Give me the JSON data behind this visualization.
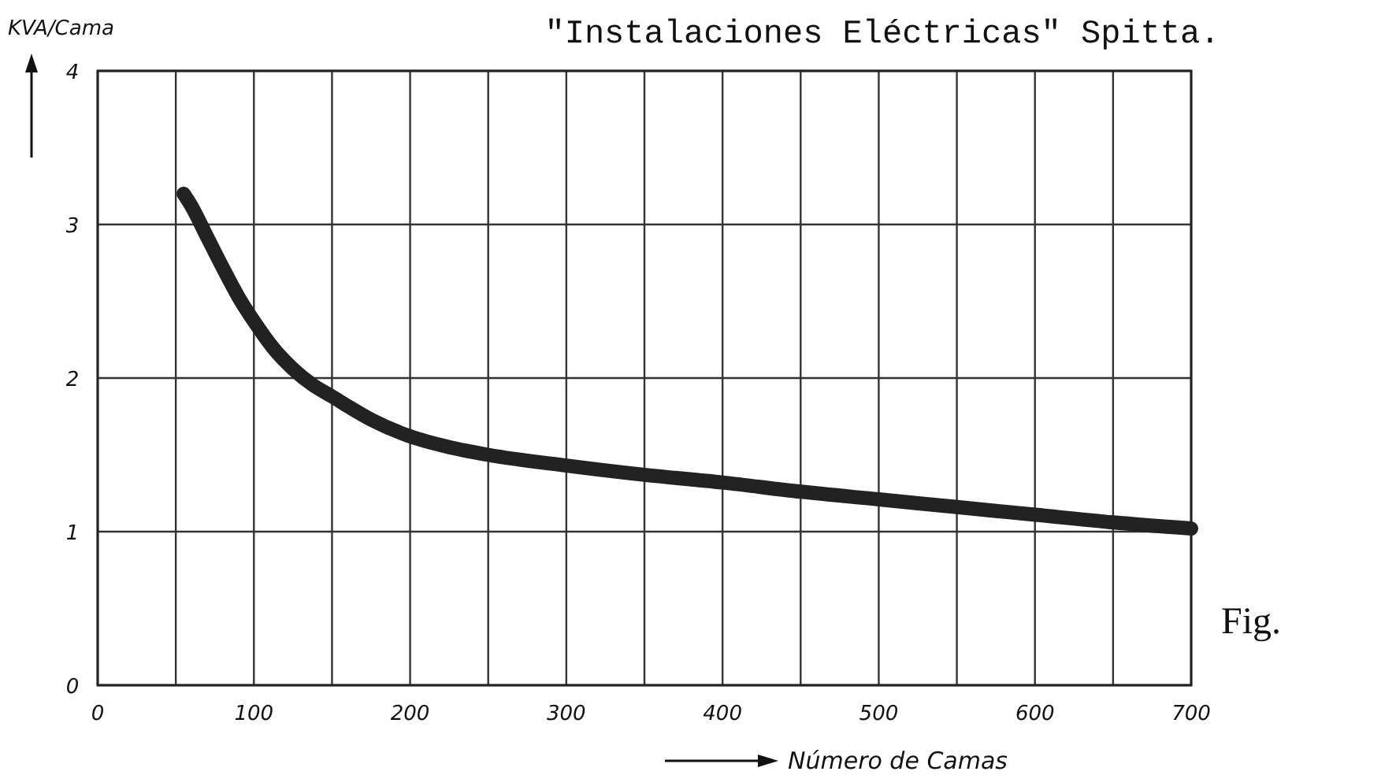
{
  "chart_data": {
    "type": "line",
    "title": "\"Instalaciones Eléctricas\" Spitta.",
    "xlabel": "Número de Camas",
    "ylabel": "KVA/Cama",
    "annotations": [
      "Fig."
    ],
    "series": [
      {
        "color": "#222222",
        "x": [
          55,
          60,
          70,
          80,
          90,
          100,
          112,
          125,
          137,
          150,
          175,
          200,
          225,
          250,
          300,
          350,
          400,
          450,
          500,
          550,
          600,
          650,
          700
        ],
        "values": [
          3.2,
          3.12,
          2.92,
          2.72,
          2.53,
          2.37,
          2.2,
          2.06,
          1.96,
          1.88,
          1.73,
          1.62,
          1.55,
          1.5,
          1.43,
          1.37,
          1.32,
          1.26,
          1.21,
          1.16,
          1.11,
          1.06,
          1.02
        ]
      }
    ],
    "xlim": [
      0,
      700
    ],
    "ylim": [
      0,
      4
    ],
    "xticks": [
      0,
      {
        "value": 50,
        "label": null
      },
      100,
      {
        "value": 150,
        "label": null
      },
      200,
      {
        "value": 250,
        "label": null
      },
      300,
      {
        "value": 350,
        "label": null
      },
      400,
      {
        "value": 450,
        "label": null
      },
      500,
      {
        "value": 550,
        "label": null
      },
      600,
      {
        "value": 650,
        "label": null
      },
      700
    ],
    "yticks": [
      0,
      1,
      2,
      3,
      4
    ],
    "grid": true,
    "marker": "none",
    "line_style": "solid"
  }
}
